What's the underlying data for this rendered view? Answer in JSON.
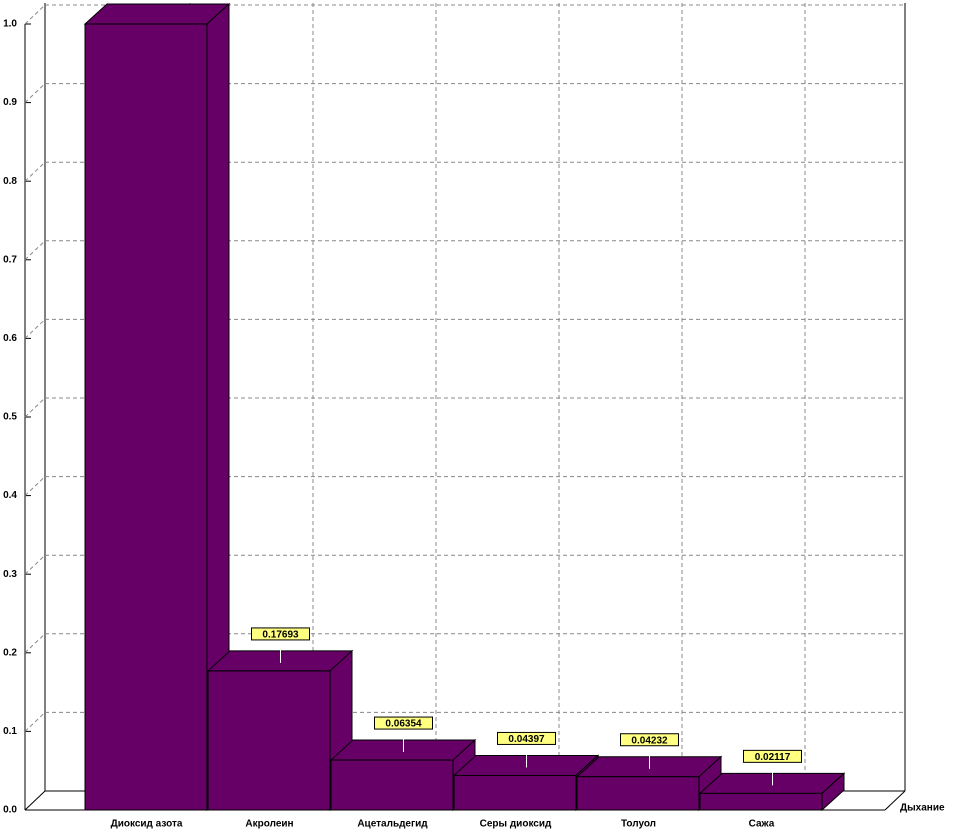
{
  "chart_data": {
    "type": "bar3d",
    "categories": [
      "Диоксид азота",
      "Акролеин",
      "Ацетальдегид",
      "Серы диоксид",
      "Толуол",
      "Сажа"
    ],
    "values": [
      1.0,
      0.17693,
      0.06354,
      0.04397,
      0.04232,
      0.02117
    ],
    "color": "#660066",
    "depth_label": "Дыхание",
    "ylim": [
      0,
      1
    ],
    "yticks": [
      {
        "value": 0,
        "label": "0.0"
      },
      0.1,
      0.2,
      0.3,
      0.4,
      0.5,
      0.6,
      0.7,
      0.8,
      0.9,
      {
        "value": 1,
        "label": "1.0"
      }
    ],
    "grid": true
  }
}
